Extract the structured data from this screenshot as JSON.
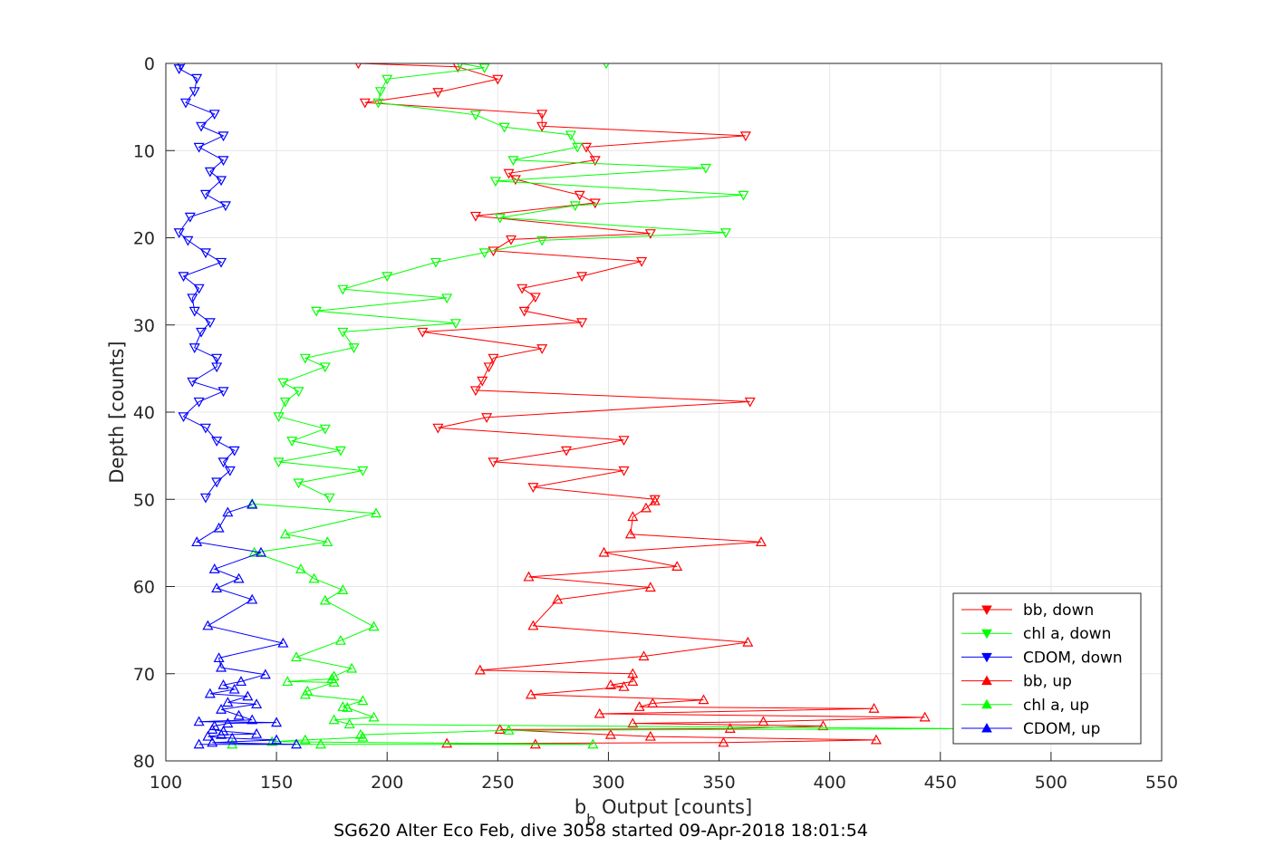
{
  "chart_data": {
    "type": "line",
    "title": "",
    "xlabel": "b_b Output [counts]",
    "xlabel_main": "b",
    "xlabel_sub": "b",
    "xlabel_rest": " Output [counts]",
    "ylabel": "Depth [counts]",
    "footer": "SG620 Alter Eco Feb, dive 3058 started 09-Apr-2018 18:01:54",
    "xlim": [
      100,
      550
    ],
    "ylim": [
      0,
      80
    ],
    "y_reversed": true,
    "grid": true,
    "legend_position": "bottom-right",
    "x_ticks": [
      "100",
      "150",
      "200",
      "250",
      "300",
      "350",
      "400",
      "450",
      "500",
      "550"
    ],
    "y_ticks": [
      "0",
      "10",
      "20",
      "30",
      "40",
      "50",
      "60",
      "70",
      "80"
    ],
    "series": [
      {
        "name": "bb, down",
        "color": "#ff0000",
        "marker": "triangle-down",
        "points": [
          [
            187,
            0
          ],
          [
            232,
            0.4
          ],
          [
            250,
            1.8
          ],
          [
            223,
            3.3
          ],
          [
            190,
            4.5
          ],
          [
            270,
            5.8
          ],
          [
            270,
            7.2
          ],
          [
            362,
            8.3
          ],
          [
            290,
            9.6
          ],
          [
            294,
            11.1
          ],
          [
            255,
            12.6
          ],
          [
            258,
            13.3
          ],
          [
            287,
            15.1
          ],
          [
            294,
            16
          ],
          [
            240,
            17.5
          ],
          [
            319,
            19.5
          ],
          [
            256,
            20.2
          ],
          [
            248,
            21.5
          ],
          [
            315,
            22.7
          ],
          [
            288,
            24.4
          ],
          [
            261,
            25.8
          ],
          [
            267,
            26.8
          ],
          [
            262,
            28.4
          ],
          [
            288,
            29.7
          ],
          [
            216,
            30.8
          ],
          [
            270,
            32.7
          ],
          [
            248,
            33.8
          ],
          [
            246,
            34.8
          ],
          [
            243,
            36.4
          ],
          [
            240,
            37.5
          ],
          [
            364,
            38.8
          ],
          [
            245,
            40.6
          ],
          [
            223,
            41.8
          ],
          [
            307,
            43.2
          ],
          [
            281,
            44.4
          ],
          [
            248,
            45.7
          ],
          [
            307,
            46.7
          ],
          [
            266,
            48.6
          ],
          [
            321,
            50
          ]
        ]
      },
      {
        "name": "chl a, down",
        "color": "#00ff00",
        "marker": "triangle-down",
        "points": [
          [
            299,
            0
          ],
          [
            233,
            0
          ],
          [
            244,
            0.5
          ],
          [
            200,
            1.8
          ],
          [
            197,
            3.2
          ],
          [
            196,
            4.5
          ],
          [
            240,
            5.9
          ],
          [
            253,
            7.3
          ],
          [
            283,
            8.2
          ],
          [
            286,
            9.6
          ],
          [
            257,
            11.1
          ],
          [
            344,
            12
          ],
          [
            249,
            13.5
          ],
          [
            361,
            15.1
          ],
          [
            285,
            16.3
          ],
          [
            251,
            17.7
          ],
          [
            353,
            19.4
          ],
          [
            270,
            20.3
          ],
          [
            244,
            21.7
          ],
          [
            222,
            22.8
          ],
          [
            200,
            24.4
          ],
          [
            180,
            25.9
          ],
          [
            227,
            26.9
          ],
          [
            168,
            28.4
          ],
          [
            231,
            29.8
          ],
          [
            180,
            30.8
          ],
          [
            185,
            32.6
          ],
          [
            163,
            33.8
          ],
          [
            172,
            34.8
          ],
          [
            153,
            36.6
          ],
          [
            160,
            37.6
          ],
          [
            154,
            38.8
          ],
          [
            151,
            40.5
          ],
          [
            172,
            41.9
          ],
          [
            157,
            43.3
          ],
          [
            179,
            44.4
          ],
          [
            151,
            45.7
          ],
          [
            189,
            46.7
          ],
          [
            160,
            48.1
          ],
          [
            174,
            49.8
          ]
        ]
      },
      {
        "name": "CDOM, down",
        "color": "#0000ff",
        "marker": "triangle-down",
        "points": [
          [
            107,
            0.2
          ],
          [
            106,
            0.6
          ],
          [
            114,
            1.7
          ],
          [
            113,
            3.2
          ],
          [
            109,
            4.5
          ],
          [
            122,
            5.8
          ],
          [
            116,
            7.2
          ],
          [
            126,
            8.3
          ],
          [
            115,
            9.6
          ],
          [
            126,
            11.1
          ],
          [
            120,
            12.4
          ],
          [
            125,
            13.4
          ],
          [
            118,
            15
          ],
          [
            127,
            16.3
          ],
          [
            111,
            17.6
          ],
          [
            106,
            19.4
          ],
          [
            110,
            20.3
          ],
          [
            118,
            21.7
          ],
          [
            125,
            22.8
          ],
          [
            108,
            24.4
          ],
          [
            115,
            25.8
          ],
          [
            112,
            26.9
          ],
          [
            113,
            28.4
          ],
          [
            120,
            29.7
          ],
          [
            116,
            30.8
          ],
          [
            113,
            32.6
          ],
          [
            123,
            33.8
          ],
          [
            123,
            34.8
          ],
          [
            112,
            36.5
          ],
          [
            126,
            37.6
          ],
          [
            115,
            38.8
          ],
          [
            108,
            40.5
          ],
          [
            118,
            41.8
          ],
          [
            123,
            43.3
          ],
          [
            131,
            44.4
          ],
          [
            126,
            45.7
          ],
          [
            129,
            46.7
          ],
          [
            123,
            48
          ],
          [
            118,
            49.8
          ]
        ]
      },
      {
        "name": "bb, up",
        "color": "#ff0000",
        "marker": "triangle-up",
        "points": [
          [
            321,
            50.2
          ],
          [
            317,
            51
          ],
          [
            311,
            52
          ],
          [
            310,
            54
          ],
          [
            369,
            54.9
          ],
          [
            298,
            56.1
          ],
          [
            331,
            57.7
          ],
          [
            264,
            58.9
          ],
          [
            319,
            60.1
          ],
          [
            277,
            61.5
          ],
          [
            266,
            64.5
          ],
          [
            363,
            66.4
          ],
          [
            316,
            68
          ],
          [
            242,
            69.6
          ],
          [
            311,
            70
          ],
          [
            311,
            70.9
          ],
          [
            301,
            71.3
          ],
          [
            307,
            71.5
          ],
          [
            265,
            72.4
          ],
          [
            343,
            73
          ],
          [
            320,
            73.4
          ],
          [
            314,
            73.8
          ],
          [
            420,
            74
          ],
          [
            296,
            74.6
          ],
          [
            443,
            75
          ],
          [
            370,
            75.5
          ],
          [
            311,
            75.7
          ],
          [
            397,
            76
          ],
          [
            355,
            76.3
          ],
          [
            251,
            76.4
          ],
          [
            301,
            77
          ],
          [
            319,
            77.2
          ],
          [
            421,
            77.6
          ],
          [
            352,
            77.9
          ],
          [
            227,
            78
          ],
          [
            267,
            78.1
          ]
        ]
      },
      {
        "name": "chl a, up",
        "color": "#00ff00",
        "marker": "triangle-up",
        "points": [
          [
            139,
            50.5
          ],
          [
            195,
            51.6
          ],
          [
            154,
            54
          ],
          [
            173,
            54.9
          ],
          [
            140,
            56.1
          ],
          [
            161,
            58
          ],
          [
            167,
            59.1
          ],
          [
            180,
            60.4
          ],
          [
            172,
            61.6
          ],
          [
            194,
            64.6
          ],
          [
            179,
            66.2
          ],
          [
            159,
            68.1
          ],
          [
            184,
            69.4
          ],
          [
            176,
            70.3
          ],
          [
            175,
            70.6
          ],
          [
            155,
            70.9
          ],
          [
            176,
            71
          ],
          [
            164,
            72
          ],
          [
            163,
            72.4
          ],
          [
            189,
            73.1
          ],
          [
            180,
            73.8
          ],
          [
            182,
            73.9
          ],
          [
            194,
            75
          ],
          [
            176,
            75.3
          ],
          [
            183,
            75.8
          ],
          [
            461,
            76.3
          ],
          [
            255,
            76.5
          ],
          [
            188,
            77
          ],
          [
            189,
            77.3
          ],
          [
            163,
            77.6
          ],
          [
            148,
            77.8
          ],
          [
            293,
            78.1
          ],
          [
            170,
            78.1
          ],
          [
            130,
            78.1
          ]
        ]
      },
      {
        "name": "CDOM, up",
        "color": "#0000ff",
        "marker": "triangle-up",
        "points": [
          [
            139,
            50.6
          ],
          [
            128,
            51.5
          ],
          [
            124,
            53.3
          ],
          [
            114,
            54.9
          ],
          [
            143,
            56.1
          ],
          [
            122,
            58
          ],
          [
            133,
            59.1
          ],
          [
            123,
            60.2
          ],
          [
            139,
            61.5
          ],
          [
            119,
            64.5
          ],
          [
            153,
            66.5
          ],
          [
            124,
            68.2
          ],
          [
            125,
            69.3
          ],
          [
            145,
            70.1
          ],
          [
            134,
            70.9
          ],
          [
            126,
            71.3
          ],
          [
            131,
            71.8
          ],
          [
            120,
            72.3
          ],
          [
            137,
            72.6
          ],
          [
            128,
            73.3
          ],
          [
            141,
            73.5
          ],
          [
            125,
            74.1
          ],
          [
            133,
            74.8
          ],
          [
            139,
            75.3
          ],
          [
            115,
            75.5
          ],
          [
            150,
            75.6
          ],
          [
            128,
            75.7
          ],
          [
            122,
            76
          ],
          [
            121,
            76.4
          ],
          [
            126,
            76.6
          ],
          [
            141,
            76.9
          ],
          [
            125,
            77
          ],
          [
            119,
            77.2
          ],
          [
            130,
            77.4
          ],
          [
            150,
            77.6
          ],
          [
            121,
            77.9
          ],
          [
            159,
            78.1
          ],
          [
            115,
            78.1
          ]
        ]
      }
    ]
  }
}
